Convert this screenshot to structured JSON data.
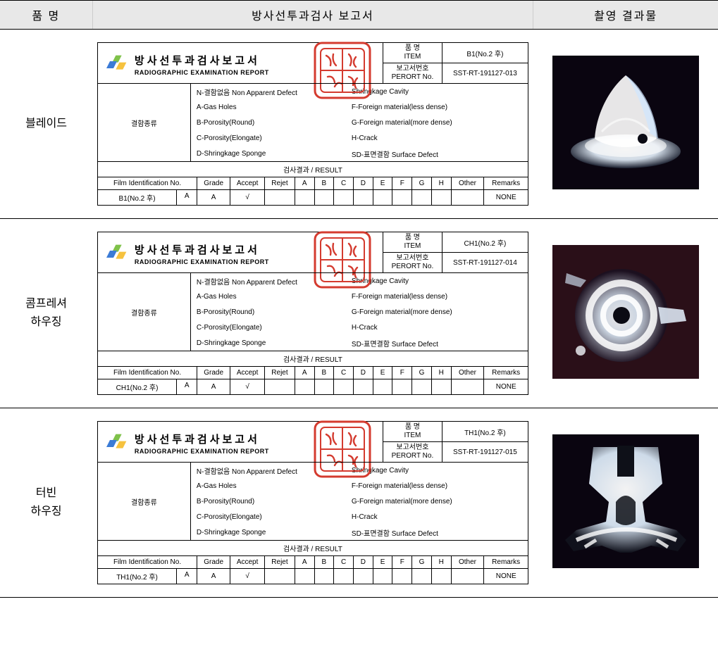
{
  "colors": {
    "header_bg": "#e8e8e8",
    "border": "#000000",
    "stamp": "#d43b2f",
    "logo_blue": "#3b7bd6",
    "logo_green": "#7fc24a",
    "logo_yellow": "#f6c23e",
    "xray_bg": "#0a0510",
    "xray_light": "#e8f4ff"
  },
  "headers": {
    "name": "품 명",
    "report": "방사선투과검사 보고서",
    "image": "촬영 결과물"
  },
  "report_title_ko": "방사선투과검사보고서",
  "report_title_en": "RADIOGRAPHIC EXAMINATION REPORT",
  "meta_labels": {
    "item_ko": "품 명",
    "item_en": "ITEM",
    "no_ko": "보고서번호",
    "no_en": "PERORT No."
  },
  "defects_label": "결함종류",
  "defects_left": [
    "N-결함없음 Non Apparent Defect",
    "A-Gas Holes",
    "B-Porosity(Round)",
    "C-Porosity(Elongate)",
    "D-Shringkage Sponge"
  ],
  "defects_right": [
    "Shringkage Cavity",
    "F-Foreign material(less dense)",
    "G-Foreign material(more dense)",
    "H-Crack",
    "SD-표면결함 Surface Defect"
  ],
  "result_header": "검사결과 / RESULT",
  "result_cols": {
    "film": "Film Identification No.",
    "grade": "Grade",
    "accept": "Accept",
    "rejet": "Rejet",
    "a": "A",
    "b": "B",
    "c": "C",
    "d": "D",
    "e": "E",
    "f": "F",
    "g": "G",
    "h": "H",
    "other": "Other",
    "remarks": "Remarks"
  },
  "rows": [
    {
      "name": "블레이드",
      "item": "B1(No.2 후)",
      "report_no": "SST-RT-191127-013",
      "film_id": "B1(No.2 후)",
      "film_sub": "A",
      "grade": "A",
      "accept": "√",
      "rejet": "",
      "vals": {
        "a": "",
        "b": "",
        "c": "",
        "d": "",
        "e": "",
        "f": "",
        "g": "",
        "h": "",
        "other": ""
      },
      "remarks": "NONE",
      "xray_type": "blade"
    },
    {
      "name": "콤프레셔\n하우징",
      "item": "CH1(No.2 후)",
      "report_no": "SST-RT-191127-014",
      "film_id": "CH1(No.2 후)",
      "film_sub": "A",
      "grade": "A",
      "accept": "√",
      "rejet": "",
      "vals": {
        "a": "",
        "b": "",
        "c": "",
        "d": "",
        "e": "",
        "f": "",
        "g": "",
        "h": "",
        "other": ""
      },
      "remarks": "NONE",
      "xray_type": "compressor"
    },
    {
      "name": "터빈\n하우징",
      "item": "TH1(No.2 후)",
      "report_no": "SST-RT-191127-015",
      "film_id": "TH1(No.2 후)",
      "film_sub": "A",
      "grade": "A",
      "accept": "√",
      "rejet": "",
      "vals": {
        "a": "",
        "b": "",
        "c": "",
        "d": "",
        "e": "",
        "f": "",
        "g": "",
        "h": "",
        "other": ""
      },
      "remarks": "NONE",
      "xray_type": "turbine"
    }
  ]
}
